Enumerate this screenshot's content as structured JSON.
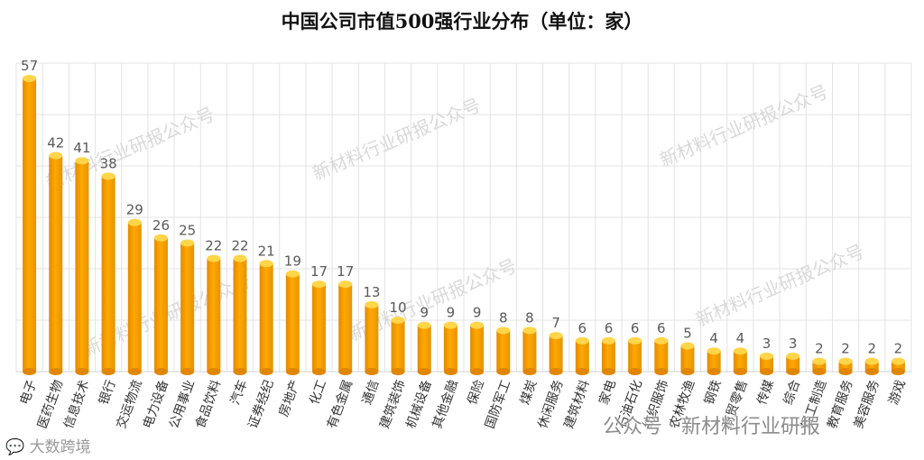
{
  "chart_data": {
    "type": "bar",
    "title": "中国公司市值500强行业分布（单位：家）",
    "xlabel": "",
    "ylabel": "",
    "ylim": [
      0,
      57
    ],
    "grid": true,
    "legend": "none",
    "categories": [
      "电子",
      "医药生物",
      "信息技术",
      "银行",
      "交运物流",
      "电力设备",
      "公用事业",
      "食品饮料",
      "汽车",
      "证券经纪",
      "房地产",
      "化工",
      "有色金属",
      "通信",
      "建筑装饰",
      "机械设备",
      "其他金融",
      "保险",
      "国防军工",
      "煤炭",
      "休闲服务",
      "建筑材料",
      "家电",
      "石油石化",
      "纺织服饰",
      "农林牧渔",
      "钢铁",
      "商贸零售",
      "传媒",
      "综合",
      "轻工制造",
      "教育服务",
      "美容服务",
      "游戏"
    ],
    "values": [
      57,
      42,
      41,
      38,
      29,
      26,
      25,
      22,
      22,
      21,
      19,
      17,
      17,
      13,
      10,
      9,
      9,
      9,
      8,
      8,
      7,
      6,
      6,
      6,
      6,
      5,
      4,
      4,
      3,
      3,
      2,
      2,
      2,
      2
    ],
    "colors": {
      "bar": "#ffa800",
      "bar_top": "#ffd54a",
      "grid": "#e3e3e3"
    }
  },
  "watermark": {
    "text": "新材料行业研报公众号"
  },
  "footer": {
    "logo": "大数跨境",
    "credit": "公众号 · 新材料行业研报"
  }
}
